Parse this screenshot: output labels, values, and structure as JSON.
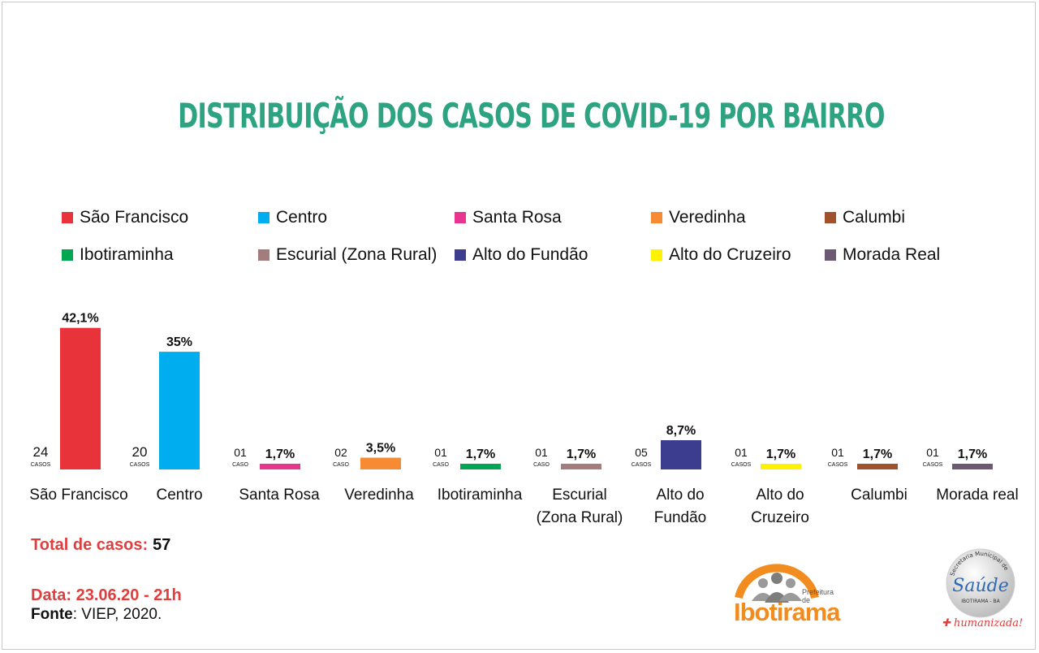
{
  "title": "DISTRIBUIÇÃO DOS CASOS DE COVID-19 POR BAIRRO",
  "legend": [
    {
      "label": "São Francisco",
      "color": "#e8333a"
    },
    {
      "label": "Centro",
      "color": "#00aeef"
    },
    {
      "label": "Santa Rosa",
      "color": "#e8358f"
    },
    {
      "label": "Veredinha",
      "color": "#f68b33"
    },
    {
      "label": "Calumbi",
      "color": "#a0522d"
    },
    {
      "label": "Ibotiraminha",
      "color": "#00a651"
    },
    {
      "label": "Escurial (Zona Rural)",
      "color": "#a57c7c"
    },
    {
      "label": "Alto do Fundão",
      "color": "#3d3d8f"
    },
    {
      "label": "Alto do Cruzeiro",
      "color": "#fff200"
    },
    {
      "label": "Morada Real",
      "color": "#6b5a72"
    }
  ],
  "chart_data": {
    "type": "bar",
    "title": "DISTRIBUIÇÃO DOS CASOS DE COVID-19 POR BAIRRO",
    "categories": [
      "São Francisco",
      "Centro",
      "Santa Rosa",
      "Veredinha",
      "Ibotiraminha",
      "Escurial\n(Zona Rural)",
      "Alto do\nFundão",
      "Alto do\nCruzeiro",
      "Calumbi",
      "Morada real"
    ],
    "percent_values": [
      42.1,
      35,
      1.7,
      3.5,
      1.7,
      1.7,
      8.7,
      1.7,
      1.7,
      1.7
    ],
    "percent_labels": [
      "42,1%",
      "35%",
      "1,7%",
      "3,5%",
      "1,7%",
      "1,7%",
      "8,7%",
      "1,7%",
      "1,7%",
      "1,7%"
    ],
    "case_counts": [
      "24",
      "20",
      "01",
      "02",
      "01",
      "01",
      "05",
      "01",
      "01",
      "01"
    ],
    "case_units": [
      "CASOS",
      "CASOS",
      "CASO",
      "CASO",
      "CASO",
      "CASO",
      "CASOS",
      "CASOS",
      "CASOS",
      "CASOS"
    ],
    "colors": [
      "#e8333a",
      "#00aeef",
      "#e8358f",
      "#f68b33",
      "#00a651",
      "#a57c7c",
      "#3d3d8f",
      "#fff200",
      "#a0522d",
      "#6b5a72"
    ],
    "ylim": [
      0,
      45
    ],
    "grid": false,
    "legend_placement": "top"
  },
  "footer": {
    "total_label": "Total de casos:",
    "total_value": "57",
    "date": "Data: 23.06.20 - 21h",
    "source_label": "Fonte",
    "source_value": ": VIEP, 2020."
  },
  "logos": {
    "ibotirama": {
      "prefix": "Prefeitura de",
      "name": "Ibotirama"
    },
    "saude": {
      "ring_text": "Secretaria Municipal de",
      "name": "Saúde",
      "place": "IBOTIRAMA - BA",
      "tagline": "humanizada!"
    }
  }
}
